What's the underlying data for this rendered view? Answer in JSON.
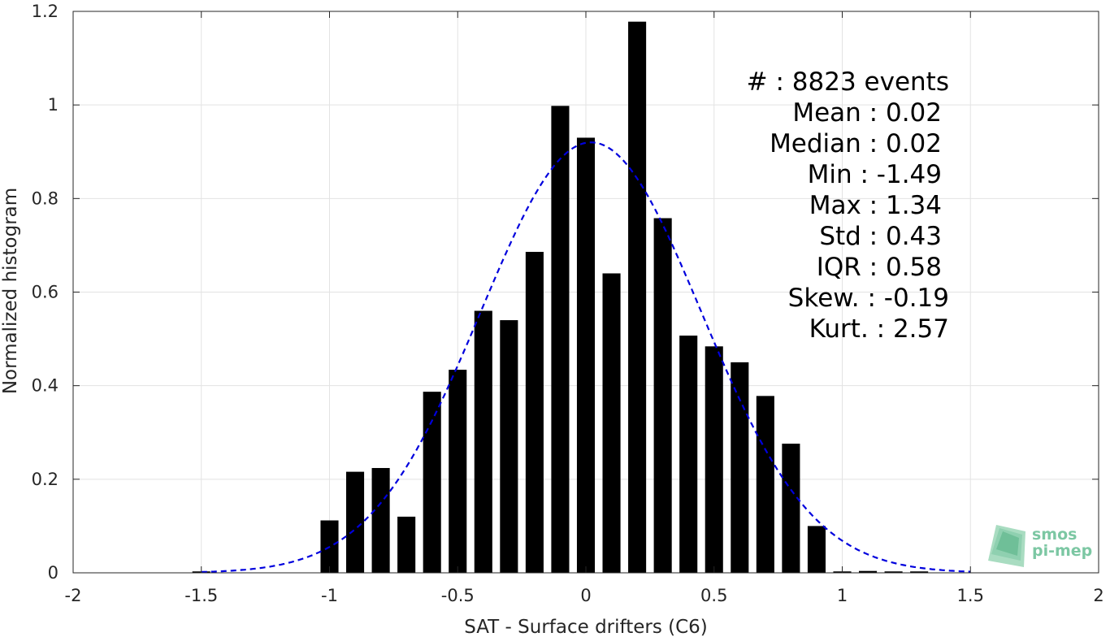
{
  "chart_data": {
    "type": "bar",
    "xlabel": "SAT - Surface drifters (C6)",
    "ylabel": "Normalized histogram",
    "xlim": [
      -2,
      2
    ],
    "ylim": [
      0,
      1.2
    ],
    "xticks": [
      -2,
      -1.5,
      -1,
      -0.5,
      0,
      0.5,
      1,
      1.5,
      2
    ],
    "xtick_labels": [
      "-2",
      "-1.5",
      "-1",
      "-0.5",
      "0",
      "0.5",
      "1",
      "1.5",
      "2"
    ],
    "yticks": [
      0,
      0.2,
      0.4,
      0.6,
      0.8,
      1,
      1.2
    ],
    "ytick_labels": [
      "0",
      "0.2",
      "0.4",
      "0.6",
      "0.8",
      "1",
      "1.2"
    ],
    "grid": true,
    "bar_color": "#000000",
    "bar_width": 0.07,
    "bars": {
      "x": [
        -1.5,
        -1.0,
        -0.9,
        -0.8,
        -0.7,
        -0.6,
        -0.5,
        -0.4,
        -0.3,
        -0.2,
        -0.1,
        0.0,
        0.1,
        0.2,
        0.3,
        0.4,
        0.5,
        0.6,
        0.7,
        0.8,
        0.9,
        1.0,
        1.1,
        1.2,
        1.3
      ],
      "values": [
        0.003,
        0.112,
        0.216,
        0.224,
        0.12,
        0.387,
        0.434,
        0.56,
        0.54,
        0.686,
        0.998,
        0.93,
        0.64,
        1.178,
        0.758,
        0.507,
        0.484,
        0.45,
        0.378,
        0.276,
        0.1,
        0.003,
        0.004,
        0.003,
        0.003
      ]
    },
    "fit_curve": {
      "type": "gaussian",
      "style": "dashed",
      "color": "#0000dd",
      "mean": 0.02,
      "std": 0.43,
      "peak": 0.92,
      "x_range": [
        -1.5,
        1.5
      ]
    }
  },
  "stats": [
    {
      "label": "#  : 8823 events"
    },
    {
      "label": "Mean : 0.02"
    },
    {
      "label": "Median : 0.02"
    },
    {
      "label": "Min : -1.49"
    },
    {
      "label": "Max : 1.34"
    },
    {
      "label": "Std : 0.43"
    },
    {
      "label": "IQR : 0.58"
    },
    {
      "label": "Skew. : -0.19"
    },
    {
      "label": "Kurt. : 2.57"
    }
  ],
  "logo": {
    "line1": "smos",
    "line2": "pi-mep",
    "color": "#7cc7a3"
  }
}
